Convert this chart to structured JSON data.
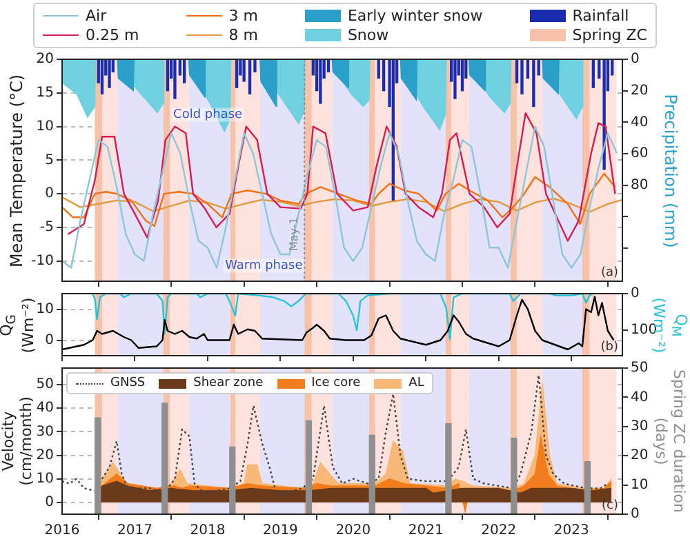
{
  "chart_data": [
    {
      "type": "line",
      "ylabel": "Mean Temperature (°C)",
      "y2label": "Precipitation (mm)",
      "xlim": [
        2016,
        2023.7
      ],
      "xticks": [
        2016,
        2017,
        2018,
        2019,
        2020,
        2021,
        2022,
        2023
      ],
      "ylim": [
        -13,
        20
      ],
      "yticks": [
        -10,
        -5,
        0,
        5,
        10,
        15,
        20
      ],
      "y2lim": [
        141,
        0
      ],
      "y2ticks": [
        0,
        20,
        40,
        60,
        80,
        {
          "value": 100,
          "label": null
        },
        {
          "value": 120,
          "label": null
        }
      ],
      "grid": true,
      "legend": "top",
      "tick_labels": "y",
      "series": [
        {
          "name": "Air",
          "color": "#8ec5d8",
          "x": [
            2016,
            2016.125,
            2016.25,
            2016.375,
            2016.5,
            2016.625,
            2016.75,
            2016.875,
            2017,
            2017.125,
            2017.25,
            2017.375,
            2017.5,
            2017.625,
            2017.75,
            2017.875,
            2018,
            2018.125,
            2018.25,
            2018.375,
            2018.5,
            2018.625,
            2018.75,
            2018.875,
            2019,
            2019.125,
            2019.25,
            2019.375,
            2019.5,
            2019.625,
            2019.75,
            2019.875,
            2020,
            2020.125,
            2020.25,
            2020.375,
            2020.5,
            2020.625,
            2020.75,
            2020.875,
            2021,
            2021.125,
            2021.25,
            2021.375,
            2021.5,
            2021.625,
            2021.75,
            2021.875,
            2022,
            2022.125,
            2022.25,
            2022.375,
            2022.5,
            2022.625,
            2022.75,
            2022.875,
            2023,
            2023.125,
            2023.25,
            2023.375,
            2023.5,
            2023.625
          ],
          "values": [
            -10,
            -11,
            -4,
            2,
            8,
            7,
            1,
            -6,
            -9,
            -10,
            -3,
            3,
            9,
            6,
            -1,
            -7,
            -8,
            -11,
            -5,
            2,
            9,
            6,
            0,
            -6,
            -9,
            -9,
            -3,
            3,
            8,
            7,
            0,
            -8,
            -10,
            -8,
            -2,
            4,
            9,
            6,
            -1,
            -7,
            -9,
            -10,
            -3,
            2,
            8,
            7,
            0,
            -8,
            -8,
            -11,
            -4,
            3,
            10,
            7,
            -1,
            -9,
            -11,
            -9,
            -2,
            4,
            9,
            6
          ]
        },
        {
          "name": "0.25 m",
          "color": "#d81b50",
          "x": [
            2016.08,
            2016.3,
            2016.45,
            2016.55,
            2016.72,
            2016.85,
            2017,
            2017.17,
            2017.32,
            2017.42,
            2017.55,
            2017.7,
            2017.8,
            2017.95,
            2018.12,
            2018.3,
            2018.42,
            2018.53,
            2018.68,
            2018.82,
            2019,
            2019.28,
            2019.37,
            2019.45,
            2019.62,
            2019.78,
            2020,
            2020.2,
            2020.32,
            2020.46,
            2020.6,
            2020.72,
            2020.9,
            2021.1,
            2021.22,
            2021.33,
            2021.42,
            2021.6,
            2021.8,
            2021.98,
            2022.15,
            2022.28,
            2022.37,
            2022.52,
            2022.65,
            2022.95,
            2023.1,
            2023.27,
            2023.37,
            2023.47,
            2023.6
          ],
          "values": [
            -6,
            -4.5,
            2,
            8.5,
            8.5,
            0,
            -3,
            -6.5,
            -1,
            8,
            10,
            9,
            0,
            -2,
            -5,
            -3,
            4,
            10,
            8,
            0,
            -2,
            -2.2,
            0,
            10,
            9,
            0,
            -2.5,
            -2,
            4,
            10,
            7,
            0,
            -2,
            -3.5,
            0,
            8,
            9,
            0,
            -2,
            -5,
            -3,
            6,
            12,
            9,
            0,
            -7,
            -4,
            6,
            10.5,
            10,
            0
          ]
        },
        {
          "name": "3 m",
          "color": "#f57010",
          "x": [
            2016,
            2016.15,
            2016.3,
            2016.45,
            2016.6,
            2016.75,
            2016.95,
            2017.15,
            2017.27,
            2017.4,
            2017.6,
            2017.8,
            2018,
            2018.2,
            2018.33,
            2018.55,
            2018.8,
            2019,
            2019.25,
            2019.35,
            2019.55,
            2019.8,
            2020.05,
            2020.25,
            2020.35,
            2020.5,
            2020.7,
            2020.9,
            2021.15,
            2021.27,
            2021.45,
            2021.6,
            2021.85,
            2022.05,
            2022.2,
            2022.35,
            2022.5,
            2022.7,
            2022.95,
            2023.12,
            2023.25,
            2023.45,
            2023.6
          ],
          "values": [
            -2,
            -3.5,
            -3.5,
            0,
            0.3,
            0,
            -1,
            -4,
            -4.8,
            0,
            0.3,
            0,
            -1.5,
            -3.5,
            0,
            0.5,
            0,
            -1,
            -1.5,
            0,
            1,
            0,
            -1,
            -1.5,
            0,
            1.5,
            0.5,
            0,
            -2.5,
            0,
            1.5,
            0.5,
            -1,
            -3.5,
            -2,
            0,
            2.5,
            1,
            -1.5,
            -4.5,
            0,
            3,
            1
          ]
        },
        {
          "name": "8 m",
          "color": "#e39a3c",
          "x": [
            2016,
            2016.25,
            2016.5,
            2016.75,
            2017,
            2017.25,
            2017.5,
            2017.75,
            2018,
            2018.25,
            2018.5,
            2018.75,
            2019,
            2019.25,
            2019.5,
            2019.75,
            2020,
            2020.25,
            2020.5,
            2020.75,
            2021,
            2021.25,
            2021.5,
            2021.75,
            2022,
            2022.25,
            2022.5,
            2022.75,
            2023,
            2023.25,
            2023.5,
            2023.7
          ],
          "values": [
            -0.5,
            -2,
            -1.5,
            -1,
            -1.2,
            -2.6,
            -1.8,
            -1,
            -1.3,
            -2.2,
            -1.5,
            -0.9,
            -1.2,
            -1.8,
            -1.2,
            -0.8,
            -1,
            -1.8,
            -1.2,
            -0.8,
            -1.2,
            -2.6,
            -1.5,
            -0.8,
            -1.2,
            -2.5,
            -1.3,
            -0.7,
            -1.5,
            -2.7,
            -1.5,
            -0.9
          ]
        },
        {
          "name": "Early winter snow",
          "type": "area",
          "axis": "y2",
          "color": "#2a9fc9",
          "x": [
            2016.76,
            2016.77,
            2016.98,
            2016.99,
            2017.74,
            2017.75,
            2017.96,
            2017.97,
            2018.72,
            2018.73,
            2018.94,
            2018.95,
            2019.71,
            2019.72,
            2019.93,
            2019.94,
            2020.65,
            2020.66,
            2020.87,
            2020.88,
            2021.59,
            2021.6,
            2021.81,
            2021.82,
            2022.6,
            2022.61,
            2022.82,
            2022.83
          ],
          "values": [
            0,
            12,
            20,
            0,
            0,
            10,
            24,
            0,
            0,
            14,
            30,
            0,
            0,
            8,
            18,
            0,
            0,
            12,
            26,
            0,
            0,
            10,
            20,
            0,
            0,
            12,
            22,
            0
          ]
        },
        {
          "name": "Snow",
          "type": "area",
          "axis": "y2",
          "color": "#6fd0e0",
          "x": [
            2016,
            2016.2,
            2016.35,
            2016.45,
            2016.46,
            2016.76,
            2016.77,
            2017.08,
            2017.31,
            2017.39,
            2017.4,
            2017.74,
            2017.75,
            2018.03,
            2018.23,
            2018.31,
            2018.32,
            2018.72,
            2018.73,
            2019.03,
            2019.25,
            2019.33,
            2019.34,
            2019.71,
            2019.72,
            2019.97,
            2020.14,
            2020.22,
            2020.23,
            2020.65,
            2020.66,
            2020.96,
            2021.19,
            2021.27,
            2021.28,
            2021.59,
            2021.6,
            2021.88,
            2022.08,
            2022.16,
            2022.17,
            2022.6,
            2022.61,
            2022.88,
            2023.07,
            2023.15,
            2023.16
          ],
          "values": [
            15,
            22,
            37,
            30,
            0,
            0,
            5,
            22,
            34,
            28,
            0,
            0,
            6,
            28,
            46,
            38,
            0,
            0,
            5,
            26,
            41,
            33,
            0,
            0,
            5,
            22,
            30,
            26,
            0,
            0,
            6,
            30,
            45,
            35,
            0,
            0,
            5,
            24,
            34,
            28,
            0,
            0,
            5,
            25,
            38,
            30,
            0
          ]
        },
        {
          "name": "Rainfall",
          "type": "bar",
          "axis": "y2",
          "color": "#1a2db0",
          "x": [
            2016.5,
            2016.55,
            2016.6,
            2016.65,
            2016.7,
            2017.45,
            2017.5,
            2017.55,
            2017.62,
            2017.68,
            2018.4,
            2018.45,
            2018.5,
            2018.58,
            2018.65,
            2019.45,
            2019.5,
            2019.55,
            2019.6,
            2019.66,
            2020.35,
            2020.42,
            2020.5,
            2020.55,
            2020.6,
            2021.35,
            2021.4,
            2021.45,
            2021.5,
            2021.55,
            2022.25,
            2022.32,
            2022.4,
            2022.48,
            2022.55,
            2023.3,
            2023.38,
            2023.45,
            2023.5,
            2023.56
          ],
          "values": [
            15,
            22,
            10,
            18,
            8,
            20,
            12,
            25,
            10,
            15,
            18,
            10,
            14,
            22,
            8,
            10,
            20,
            28,
            12,
            8,
            12,
            20,
            30,
            90,
            15,
            14,
            25,
            10,
            20,
            12,
            15,
            22,
            12,
            30,
            10,
            18,
            12,
            70,
            20,
            10
          ]
        }
      ],
      "bands": [
        {
          "axis": "x",
          "from": 2016.76,
          "to": 2017.39,
          "color": "#e2e2fb"
        },
        {
          "axis": "x",
          "from": 2017.74,
          "to": 2018.31,
          "color": "#e2e2fb"
        },
        {
          "axis": "x",
          "from": 2018.72,
          "to": 2019.33,
          "color": "#e2e2fb"
        },
        {
          "axis": "x",
          "from": 2019.71,
          "to": 2020.22,
          "color": "#e2e2fb"
        },
        {
          "axis": "x",
          "from": 2020.65,
          "to": 2021.27,
          "color": "#e2e2fb"
        },
        {
          "axis": "x",
          "from": 2021.59,
          "to": 2022.16,
          "color": "#e2e2fb"
        },
        {
          "axis": "x",
          "from": 2022.6,
          "to": 2023.15,
          "color": "#e2e2fb"
        },
        {
          "axis": "x",
          "from": 2016.55,
          "to": 2016.76,
          "color": "#fde2de"
        },
        {
          "axis": "x",
          "from": 2017.48,
          "to": 2017.74,
          "color": "#fde2de"
        },
        {
          "axis": "x",
          "from": 2018.38,
          "to": 2018.72,
          "color": "#fde2de"
        },
        {
          "axis": "x",
          "from": 2019.43,
          "to": 2019.71,
          "color": "#fde2de"
        },
        {
          "axis": "x",
          "from": 2020.3,
          "to": 2020.65,
          "color": "#fde2de"
        },
        {
          "axis": "x",
          "from": 2021.35,
          "to": 2021.59,
          "color": "#fde2de"
        },
        {
          "axis": "x",
          "from": 2022.25,
          "to": 2022.6,
          "color": "#fde2de"
        },
        {
          "axis": "x",
          "from": 2023.25,
          "to": 2023.62,
          "color": "#fde2de"
        },
        {
          "axis": "x",
          "from": 2016.45,
          "to": 2016.55,
          "color": "#f6c3aa",
          "label": "Spring ZC"
        },
        {
          "axis": "x",
          "from": 2017.39,
          "to": 2017.48,
          "color": "#f6c3aa"
        },
        {
          "axis": "x",
          "from": 2018.31,
          "to": 2018.38,
          "color": "#f6c3aa"
        },
        {
          "axis": "x",
          "from": 2019.33,
          "to": 2019.43,
          "color": "#f6c3aa"
        },
        {
          "axis": "x",
          "from": 2020.22,
          "to": 2020.3,
          "color": "#f6c3aa"
        },
        {
          "axis": "x",
          "from": 2021.27,
          "to": 2021.35,
          "color": "#f6c3aa"
        },
        {
          "axis": "x",
          "from": 2022.16,
          "to": 2022.25,
          "color": "#f6c3aa"
        },
        {
          "axis": "x",
          "from": 2023.15,
          "to": 2023.25,
          "color": "#f6c3aa"
        }
      ],
      "ref_lines": [
        {
          "axis": "x",
          "value": 2019.33,
          "label": "May-1",
          "color": "#888888",
          "line_style": "dotted"
        }
      ],
      "annotations": [
        "(a)",
        "Cold phase",
        "Warm phase"
      ]
    },
    {
      "type": "line",
      "ylabel": "Q$_{G}$ (Wm⁻²)",
      "y2label": "Q$_{M}$ (Wm⁻²)",
      "xlim": [
        2016,
        2023.7
      ],
      "xticks": [
        2016,
        2017,
        2018,
        2019,
        2020,
        2021,
        2022,
        2023
      ],
      "ylim": [
        -5,
        15
      ],
      "yticks": [
        0,
        10
      ],
      "y2lim": [
        170,
        0
      ],
      "y2ticks": [
        0,
        100
      ],
      "grid": true,
      "tick_labels": "y",
      "series": [
        {
          "color": "#000000",
          "x": [
            2016,
            2016.3,
            2016.42,
            2016.48,
            2016.55,
            2016.7,
            2016.85,
            2016.95,
            2017.05,
            2017.3,
            2017.38,
            2017.41,
            2017.45,
            2017.55,
            2017.65,
            2017.75,
            2017.85,
            2017.95,
            2018,
            2018.3,
            2018.36,
            2018.42,
            2018.55,
            2018.65,
            2018.75,
            2019.3,
            2019.36,
            2019.45,
            2019.5,
            2019.6,
            2019.68,
            2019.9,
            2020.15,
            2020.25,
            2020.35,
            2020.45,
            2020.55,
            2020.65,
            2021,
            2021.2,
            2021.3,
            2021.38,
            2021.45,
            2021.55,
            2021.65,
            2022,
            2022.15,
            2022.25,
            2022.32,
            2022.4,
            2022.5,
            2022.6,
            2022.95,
            2023.1,
            2023.15,
            2023.2,
            2023.27,
            2023.32,
            2023.37,
            2023.42,
            2023.5,
            2023.58
          ],
          "values": [
            -3,
            -1.5,
            0,
            3,
            2,
            3,
            1,
            0,
            -2.5,
            -2,
            0,
            6.5,
            3,
            2,
            3,
            1,
            0.5,
            2,
            0,
            0,
            5,
            2,
            3.5,
            3,
            0.5,
            0,
            2.5,
            4,
            5,
            3,
            0.5,
            0,
            0,
            1.5,
            7,
            8,
            3,
            0.5,
            -1.5,
            0,
            3,
            8,
            6,
            2,
            0.5,
            -2,
            0,
            8,
            13,
            10,
            3,
            0,
            -3,
            -1,
            -2,
            10,
            9,
            14,
            8,
            12,
            3,
            0
          ]
        },
        {
          "axis": "y2",
          "color": "#27c4d8",
          "x": [
            2016.42,
            2016.45,
            2016.48,
            2016.52,
            2016.6,
            2016.8,
            2016.85,
            2016.95,
            2017.3,
            2017.38,
            2017.41,
            2017.45,
            2017.5,
            2017.85,
            2017.9,
            2018,
            2018.25,
            2018.3,
            2018.38,
            2018.42,
            2018.7,
            2018.9,
            2019.05,
            2019.15,
            2019.25,
            2019.35,
            2019.8,
            2019.9,
            2020,
            2020.05,
            2020.1,
            2020.2,
            2020.5,
            2021.2,
            2021.28,
            2021.33,
            2021.38,
            2021.5,
            2022.15,
            2022.2,
            2022.25,
            2022.3,
            2022.7,
            2022.8,
            2023,
            2023.15,
            2023.2,
            2023.25,
            2023.3
          ],
          "values": [
            0,
            15,
            70,
            10,
            0,
            0,
            10,
            0,
            0,
            20,
            110,
            10,
            0,
            0,
            10,
            0,
            0,
            20,
            60,
            0,
            5,
            10,
            20,
            35,
            20,
            0,
            0,
            20,
            60,
            100,
            20,
            5,
            0,
            0,
            40,
            125,
            10,
            0,
            0,
            20,
            10,
            0,
            0,
            5,
            5,
            0,
            25,
            5,
            0
          ]
        }
      ],
      "bands": [
        {
          "axis": "x",
          "from": 2016.76,
          "to": 2017.39,
          "color": "#e2e2fb"
        },
        {
          "axis": "x",
          "from": 2017.74,
          "to": 2018.31,
          "color": "#e2e2fb"
        },
        {
          "axis": "x",
          "from": 2018.72,
          "to": 2019.33,
          "color": "#e2e2fb"
        },
        {
          "axis": "x",
          "from": 2019.71,
          "to": 2020.22,
          "color": "#e2e2fb"
        },
        {
          "axis": "x",
          "from": 2020.65,
          "to": 2021.27,
          "color": "#e2e2fb"
        },
        {
          "axis": "x",
          "from": 2021.59,
          "to": 2022.16,
          "color": "#e2e2fb"
        },
        {
          "axis": "x",
          "from": 2022.6,
          "to": 2023.15,
          "color": "#e2e2fb"
        },
        {
          "axis": "x",
          "from": 2016.55,
          "to": 2016.76,
          "color": "#fde2de"
        },
        {
          "axis": "x",
          "from": 2017.48,
          "to": 2017.74,
          "color": "#fde2de"
        },
        {
          "axis": "x",
          "from": 2018.38,
          "to": 2018.72,
          "color": "#fde2de"
        },
        {
          "axis": "x",
          "from": 2019.43,
          "to": 2019.71,
          "color": "#fde2de"
        },
        {
          "axis": "x",
          "from": 2020.3,
          "to": 2020.65,
          "color": "#fde2de"
        },
        {
          "axis": "x",
          "from": 2021.35,
          "to": 2021.59,
          "color": "#fde2de"
        },
        {
          "axis": "x",
          "from": 2022.25,
          "to": 2022.6,
          "color": "#fde2de"
        },
        {
          "axis": "x",
          "from": 2023.25,
          "to": 2023.62,
          "color": "#fde2de"
        },
        {
          "axis": "x",
          "from": 2016.45,
          "to": 2016.55,
          "color": "#f6c3aa"
        },
        {
          "axis": "x",
          "from": 2017.39,
          "to": 2017.48,
          "color": "#f6c3aa"
        },
        {
          "axis": "x",
          "from": 2018.31,
          "to": 2018.38,
          "color": "#f6c3aa"
        },
        {
          "axis": "x",
          "from": 2019.33,
          "to": 2019.43,
          "color": "#f6c3aa"
        },
        {
          "axis": "x",
          "from": 2020.22,
          "to": 2020.3,
          "color": "#f6c3aa"
        },
        {
          "axis": "x",
          "from": 2021.27,
          "to": 2021.35,
          "color": "#f6c3aa"
        },
        {
          "axis": "x",
          "from": 2022.16,
          "to": 2022.25,
          "color": "#f6c3aa"
        },
        {
          "axis": "x",
          "from": 2023.15,
          "to": 2023.25,
          "color": "#f6c3aa"
        }
      ],
      "annotations": [
        "(b)"
      ]
    },
    {
      "type": "line",
      "ylabel": "Velocity (cm/month)",
      "y2label": "Spring ZC duration (days)",
      "xlim": [
        2016,
        2023.7
      ],
      "xticks": [
        2016,
        2017,
        2018,
        2019,
        2020,
        2021,
        2022,
        2023
      ],
      "ylim": [
        -5,
        57
      ],
      "yticks": [
        0,
        10,
        20,
        30,
        40,
        50
      ],
      "y2lim": [
        0,
        50
      ],
      "y2ticks": [
        0,
        10,
        20,
        30,
        40,
        50
      ],
      "grid": true,
      "legend": "top left",
      "series": [
        {
          "type": "bar",
          "axis": "y2",
          "color": "#8f8f8f",
          "x": [
            2016.49,
            2017.41,
            2018.34,
            2019.39,
            2020.26,
            2021.31,
            2022.21,
            2023.22
          ],
          "values": [
            33,
            38,
            23,
            32,
            27,
            31,
            26,
            18
          ]
        },
        {
          "name": "GNSS",
          "line_style": "dotted",
          "color": "#444444",
          "x": [
            2016,
            2016.1,
            2016.2,
            2016.3,
            2016.45,
            2016.55,
            2016.65,
            2016.75,
            2016.82,
            2016.9,
            2017.2,
            2017.4,
            2017.55,
            2017.65,
            2017.75,
            2017.82,
            2017.95,
            2018.3,
            2018.45,
            2018.55,
            2018.63,
            2018.75,
            2018.85,
            2018.95,
            2019.3,
            2019.45,
            2019.6,
            2019.72,
            2019.85,
            2020,
            2020.2,
            2020.35,
            2020.45,
            2020.55,
            2020.65,
            2020.75,
            2021,
            2021.3,
            2021.45,
            2021.55,
            2021.65,
            2021.8,
            2022.2,
            2022.3,
            2022.45,
            2022.55,
            2022.65,
            2022.75,
            2022.9,
            2023.2,
            2023.4,
            2023.5
          ],
          "values": [
            9,
            8,
            10,
            6,
            5,
            10,
            15,
            26,
            12,
            6,
            6,
            4,
            10,
            31,
            28,
            8,
            4,
            6,
            9,
            25,
            41,
            25,
            15,
            3,
            6,
            10,
            41,
            15,
            8,
            10,
            8,
            10,
            30,
            46,
            20,
            10,
            9,
            9,
            15,
            31,
            10,
            8,
            6,
            12,
            30,
            54,
            20,
            12,
            8,
            6,
            6,
            8
          ]
        },
        {
          "name": "Shear zone",
          "type": "area",
          "color": "#6b3a1a",
          "x": [
            2016.45,
            2016.55,
            2016.75,
            2016.9,
            2017.2,
            2017.5,
            2017.8,
            2018.3,
            2018.6,
            2019,
            2019.4,
            2019.7,
            2020.2,
            2020.6,
            2021,
            2021.1,
            2021.5,
            2022,
            2022.3,
            2022.45,
            2022.8,
            2023,
            2023.3,
            2023.55
          ],
          "values": [
            2,
            7,
            9,
            7,
            5,
            6,
            5,
            5,
            6,
            5,
            5,
            6,
            6,
            6,
            6,
            4,
            6,
            6,
            4,
            6,
            6,
            6,
            5,
            6
          ]
        },
        {
          "name": "Ice core",
          "type": "area",
          "color": "#f07c1c",
          "x": [
            2016.45,
            2016.55,
            2016.75,
            2016.9,
            2017.3,
            2017.55,
            2017.65,
            2017.75,
            2018.3,
            2018.55,
            2018.75,
            2019.3,
            2019.5,
            2019.7,
            2020.3,
            2020.5,
            2020.7,
            2021.3,
            2021.45,
            2021.54,
            2021.6,
            2022.2,
            2022.35,
            2022.5,
            2022.58,
            2022.68,
            2022.8,
            2023.2,
            2023.45,
            2023.55
          ],
          "values": [
            5,
            7,
            12,
            8,
            6,
            7,
            6,
            7,
            6,
            8,
            7,
            6,
            8,
            7,
            7,
            10,
            8,
            6,
            8,
            -4,
            6,
            5,
            7,
            12,
            28,
            12,
            7,
            5,
            6,
            9
          ]
        },
        {
          "name": "AL",
          "type": "area",
          "color": "#f8b878",
          "x": [
            2016.45,
            2016.55,
            2016.7,
            2016.8,
            2016.9,
            2017.3,
            2017.5,
            2017.62,
            2017.72,
            2018.3,
            2018.5,
            2018.55,
            2018.68,
            2018.75,
            2019.3,
            2019.45,
            2019.55,
            2019.68,
            2019.8,
            2020.3,
            2020.45,
            2020.55,
            2020.68,
            2020.78,
            2021.3,
            2021.4,
            2021.5,
            2021.65,
            2022.2,
            2022.35,
            2022.5,
            2022.6,
            2022.7,
            2022.8,
            2023.2,
            2023.45,
            2023.55
          ],
          "values": [
            7,
            10,
            17,
            12,
            8,
            6,
            8,
            14,
            8,
            6,
            8,
            16,
            16,
            8,
            6,
            8,
            17,
            12,
            8,
            8,
            12,
            26,
            22,
            8,
            7,
            10,
            9,
            7,
            6,
            8,
            20,
            51,
            20,
            8,
            6,
            6,
            10
          ]
        }
      ],
      "bands": [
        {
          "axis": "x",
          "from": 2016.76,
          "to": 2017.39,
          "color": "#e2e2fb"
        },
        {
          "axis": "x",
          "from": 2017.74,
          "to": 2018.31,
          "color": "#e2e2fb"
        },
        {
          "axis": "x",
          "from": 2018.72,
          "to": 2019.33,
          "color": "#e2e2fb"
        },
        {
          "axis": "x",
          "from": 2019.71,
          "to": 2020.22,
          "color": "#e2e2fb"
        },
        {
          "axis": "x",
          "from": 2020.65,
          "to": 2021.27,
          "color": "#e2e2fb"
        },
        {
          "axis": "x",
          "from": 2021.59,
          "to": 2022.16,
          "color": "#e2e2fb"
        },
        {
          "axis": "x",
          "from": 2022.6,
          "to": 2023.15,
          "color": "#e2e2fb"
        },
        {
          "axis": "x",
          "from": 2016.55,
          "to": 2016.76,
          "color": "#fde2de"
        },
        {
          "axis": "x",
          "from": 2017.48,
          "to": 2017.74,
          "color": "#fde2de"
        },
        {
          "axis": "x",
          "from": 2018.38,
          "to": 2018.72,
          "color": "#fde2de"
        },
        {
          "axis": "x",
          "from": 2019.43,
          "to": 2019.71,
          "color": "#fde2de"
        },
        {
          "axis": "x",
          "from": 2020.3,
          "to": 2020.65,
          "color": "#fde2de"
        },
        {
          "axis": "x",
          "from": 2021.35,
          "to": 2021.59,
          "color": "#fde2de"
        },
        {
          "axis": "x",
          "from": 2022.25,
          "to": 2022.6,
          "color": "#fde2de"
        },
        {
          "axis": "x",
          "from": 2023.25,
          "to": 2023.62,
          "color": "#fde2de"
        },
        {
          "axis": "x",
          "from": 2016.45,
          "to": 2016.55,
          "color": "#f6c3aa"
        },
        {
          "axis": "x",
          "from": 2017.39,
          "to": 2017.48,
          "color": "#f6c3aa"
        },
        {
          "axis": "x",
          "from": 2018.31,
          "to": 2018.38,
          "color": "#f6c3aa"
        },
        {
          "axis": "x",
          "from": 2019.33,
          "to": 2019.43,
          "color": "#f6c3aa"
        },
        {
          "axis": "x",
          "from": 2020.22,
          "to": 2020.3,
          "color": "#f6c3aa"
        },
        {
          "axis": "x",
          "from": 2021.27,
          "to": 2021.35,
          "color": "#f6c3aa"
        },
        {
          "axis": "x",
          "from": 2022.16,
          "to": 2022.25,
          "color": "#f6c3aa"
        },
        {
          "axis": "x",
          "from": 2023.15,
          "to": 2023.25,
          "color": "#f6c3aa"
        }
      ],
      "annotations": [
        "(c)"
      ]
    }
  ]
}
